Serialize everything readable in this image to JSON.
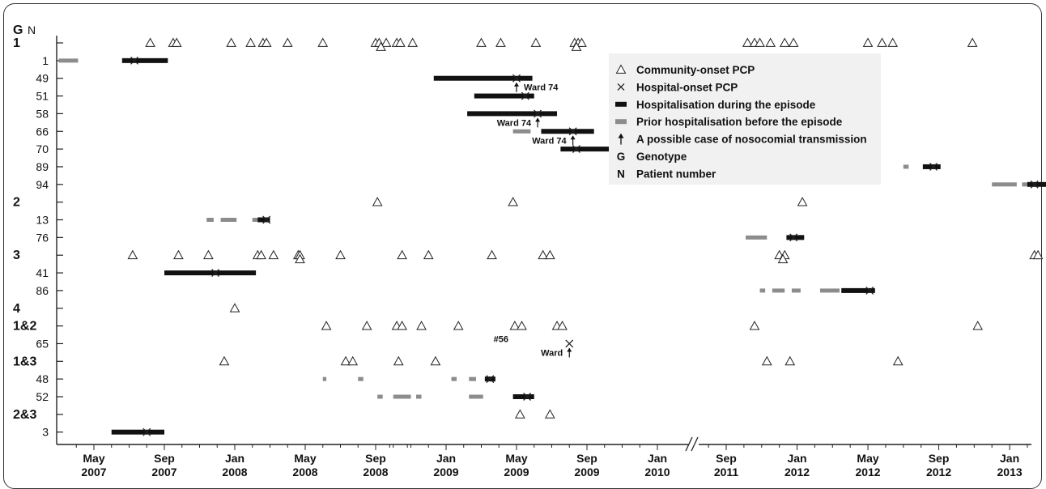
{
  "colors": {
    "hospitalisation": "#111111",
    "prior": "#8c8c8c",
    "legend_bg": "#f1f1f1",
    "axis": "#222222"
  },
  "chart_data": {
    "type": "timeline",
    "title": "",
    "header": {
      "g": "G",
      "n": "N"
    },
    "rows": [
      {
        "label": "1",
        "kind": "genotype"
      },
      {
        "label": "1",
        "kind": "patient"
      },
      {
        "label": "49",
        "kind": "patient"
      },
      {
        "label": "51",
        "kind": "patient"
      },
      {
        "label": "58",
        "kind": "patient"
      },
      {
        "label": "66",
        "kind": "patient"
      },
      {
        "label": "70",
        "kind": "patient"
      },
      {
        "label": "89",
        "kind": "patient"
      },
      {
        "label": "94",
        "kind": "patient"
      },
      {
        "label": "2",
        "kind": "genotype"
      },
      {
        "label": "13",
        "kind": "patient"
      },
      {
        "label": "76",
        "kind": "patient"
      },
      {
        "label": "3",
        "kind": "genotype"
      },
      {
        "label": "41",
        "kind": "patient"
      },
      {
        "label": "86",
        "kind": "patient"
      },
      {
        "label": "4",
        "kind": "genotype"
      },
      {
        "label": "1&2",
        "kind": "genotype"
      },
      {
        "label": "65",
        "kind": "patient"
      },
      {
        "label": "1&3",
        "kind": "genotype"
      },
      {
        "label": "48",
        "kind": "patient"
      },
      {
        "label": "52",
        "kind": "patient"
      },
      {
        "label": "2&3",
        "kind": "genotype"
      },
      {
        "label": "3",
        "kind": "patient"
      }
    ],
    "x_ticks": [
      {
        "month": "May",
        "year": "2007",
        "m": 0
      },
      {
        "month": "Sep",
        "year": "2007",
        "m": 4
      },
      {
        "month": "Jan",
        "year": "2008",
        "m": 8
      },
      {
        "month": "May",
        "year": "2008",
        "m": 12
      },
      {
        "month": "Sep",
        "year": "2008",
        "m": 16
      },
      {
        "month": "Jan",
        "year": "2009",
        "m": 20
      },
      {
        "month": "May",
        "year": "2009",
        "m": 24
      },
      {
        "month": "Sep",
        "year": "2009",
        "m": 28
      },
      {
        "month": "Jan",
        "year": "2010",
        "m": 32
      },
      {
        "month": "Sep",
        "year": "2011",
        "m": 52
      },
      {
        "month": "Jan",
        "year": "2012",
        "m": 56
      },
      {
        "month": "May",
        "year": "2012",
        "m": 60
      },
      {
        "month": "Sep",
        "year": "2012",
        "m": 64
      },
      {
        "month": "Jan",
        "year": "2013",
        "m": 68
      }
    ],
    "axis_break": "//",
    "community_onset": [
      {
        "row": 0,
        "m": [
          3.2,
          4.5,
          4.7,
          7.8,
          8.9,
          9.6,
          9.8,
          11.0,
          13.0,
          16.0,
          16.2,
          16.6,
          17.2,
          17.4,
          18.1,
          22.0,
          23.1,
          25.1,
          27.3,
          27.5,
          27.7,
          53.2,
          53.6,
          53.9,
          54.5,
          55.3,
          55.8,
          60.0,
          60.8,
          61.4,
          65.9
        ]
      },
      {
        "row": 0,
        "m": [
          16.3,
          27.4
        ],
        "low": true
      },
      {
        "row": 9,
        "m": [
          16.1,
          23.8,
          56.3
        ]
      },
      {
        "row": 12,
        "m": [
          2.2,
          4.8,
          6.5,
          9.3,
          9.5,
          10.2,
          11.6,
          11.7,
          14.0,
          17.5,
          19.0,
          22.6,
          25.5,
          25.9,
          55.0,
          55.3,
          69.4,
          69.6,
          71.5
        ]
      },
      {
        "row": 12,
        "m": [
          11.7,
          55.2
        ],
        "low": true
      },
      {
        "row": 15,
        "m": [
          8.0
        ]
      },
      {
        "row": 16,
        "m": [
          13.2,
          15.5,
          17.2,
          17.5,
          18.6,
          20.7,
          23.9,
          24.3,
          26.3,
          26.6,
          53.6,
          66.2
        ]
      },
      {
        "row": 18,
        "m": [
          7.4,
          14.3,
          14.7,
          17.3,
          19.4,
          54.3,
          55.6,
          61.7
        ]
      },
      {
        "row": 21,
        "m": [
          24.2,
          25.9
        ]
      }
    ],
    "hospital_onset": [
      {
        "row": 1,
        "m": 2.3
      },
      {
        "row": 2,
        "m": 24.0
      },
      {
        "row": 3,
        "m": 24.5
      },
      {
        "row": 4,
        "m": 25.2
      },
      {
        "row": 5,
        "m": 27.2
      },
      {
        "row": 6,
        "m": 27.4
      },
      {
        "row": 7,
        "m": 63.7
      },
      {
        "row": 8,
        "m": 69.4
      },
      {
        "row": 10,
        "m": 9.8
      },
      {
        "row": 11,
        "m": 55.8
      },
      {
        "row": 13,
        "m": 6.9
      },
      {
        "row": 14,
        "m": 60.1
      },
      {
        "row": 17,
        "m": 27.0
      },
      {
        "row": 19,
        "m": 22.5
      },
      {
        "row": 20,
        "m": 24.6
      },
      {
        "row": 22,
        "m": 3.0
      }
    ],
    "hospitalisation": [
      {
        "row": 1,
        "start": 1.6,
        "end": 4.2
      },
      {
        "row": 2,
        "start": 19.3,
        "end": 24.9
      },
      {
        "row": 3,
        "start": 21.6,
        "end": 25.0
      },
      {
        "row": 4,
        "start": 21.2,
        "end": 26.3
      },
      {
        "row": 5,
        "start": 25.4,
        "end": 28.4
      },
      {
        "row": 6,
        "start": 26.5,
        "end": 29.7
      },
      {
        "row": 7,
        "start": 63.1,
        "end": 64.1
      },
      {
        "row": 8,
        "start": 69.0,
        "end": 70.2
      },
      {
        "row": 10,
        "start": 9.3,
        "end": 10.0
      },
      {
        "row": 11,
        "start": 55.4,
        "end": 56.4
      },
      {
        "row": 13,
        "start": 4.0,
        "end": 9.2
      },
      {
        "row": 14,
        "start": 58.5,
        "end": 60.4
      },
      {
        "row": 17,
        "start": 26.0,
        "end": 34.0
      },
      {
        "row": 19,
        "start": 22.2,
        "end": 22.8
      },
      {
        "row": 20,
        "start": 23.8,
        "end": 25.0
      },
      {
        "row": 22,
        "start": 1.0,
        "end": 4.0
      }
    ],
    "prior_hospitalisation": [
      {
        "row": 1,
        "start": -2.0,
        "end": -0.9
      },
      {
        "row": 5,
        "start": 23.8,
        "end": 24.8
      },
      {
        "row": 7,
        "start": 62.0,
        "end": 62.3
      },
      {
        "row": 8,
        "start": 67.0,
        "end": 68.4
      },
      {
        "row": 8,
        "start": 68.7,
        "end": 69.0
      },
      {
        "row": 10,
        "start": 6.4,
        "end": 6.8
      },
      {
        "row": 10,
        "start": 7.2,
        "end": 8.1
      },
      {
        "row": 10,
        "start": 9.0,
        "end": 9.6
      },
      {
        "row": 11,
        "start": 53.1,
        "end": 54.3
      },
      {
        "row": 14,
        "start": 53.9,
        "end": 54.2
      },
      {
        "row": 14,
        "start": 54.6,
        "end": 55.3
      },
      {
        "row": 14,
        "start": 55.7,
        "end": 56.2
      },
      {
        "row": 14,
        "start": 57.3,
        "end": 58.4
      },
      {
        "row": 19,
        "start": 13.0,
        "end": 13.2
      },
      {
        "row": 19,
        "start": 15.0,
        "end": 15.3
      },
      {
        "row": 19,
        "start": 20.3,
        "end": 20.6
      },
      {
        "row": 19,
        "start": 21.3,
        "end": 21.7
      },
      {
        "row": 20,
        "start": 16.1,
        "end": 16.4
      },
      {
        "row": 20,
        "start": 17.0,
        "end": 18.0
      },
      {
        "row": 20,
        "start": 18.3,
        "end": 18.6
      },
      {
        "row": 20,
        "start": 21.3,
        "end": 22.1
      }
    ],
    "transmission_arrows": [
      {
        "row": 2,
        "m": 24.0,
        "dir": "up",
        "label": "Ward 74",
        "side": "right"
      },
      {
        "row": 4,
        "m": 25.2,
        "dir": "up",
        "label": "Ward 74",
        "side": "left"
      },
      {
        "row": 5,
        "m": 27.2,
        "dir": "up",
        "label": "Ward 74",
        "side": "left"
      },
      {
        "row": 17,
        "m": 27.0,
        "dir": "up",
        "label": "Ward",
        "side": "left"
      }
    ],
    "annotations": [
      {
        "text": "#56",
        "row": 17,
        "m": 24.0
      }
    ],
    "legend": {
      "placement": "top-right",
      "items": [
        {
          "symbol": "triangle",
          "label": "Community-onset PCP"
        },
        {
          "symbol": "cross",
          "label": "Hospital-onset PCP"
        },
        {
          "symbol": "black-bar",
          "label": "Hospitalisation during the episode"
        },
        {
          "symbol": "grey-bar",
          "label": "Prior hospitalisation before the episode"
        },
        {
          "symbol": "arrow",
          "label": "A possible case of nosocomial transmission"
        },
        {
          "symbol": "letter",
          "key": "G",
          "label": "Genotype"
        },
        {
          "symbol": "letter",
          "key": "N",
          "label": "Patient number"
        }
      ]
    }
  }
}
